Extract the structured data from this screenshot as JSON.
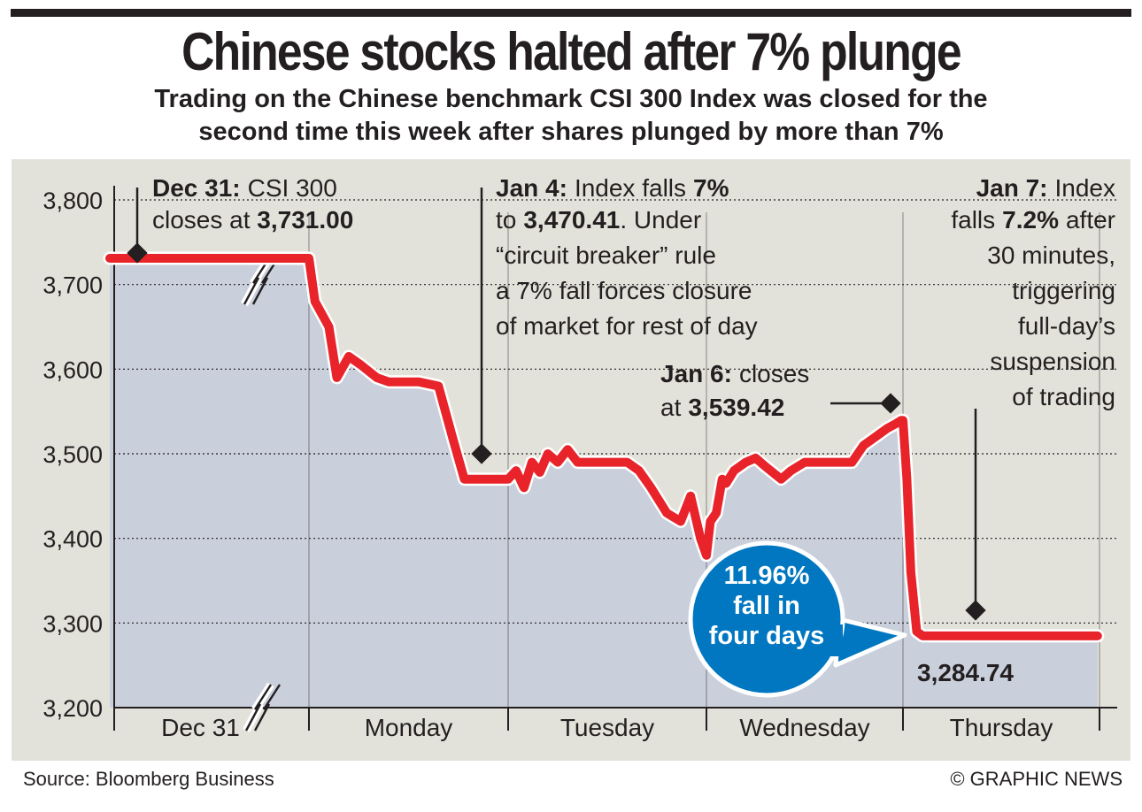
{
  "header": {
    "title": "Chinese stocks halted after 7% plunge",
    "subtitle_line1": "Trading on the Chinese benchmark CSI 300 Index was closed for the",
    "subtitle_line2": "second time this week after shares plunged by more than 7%"
  },
  "footer": {
    "source": "Source: Bloomberg Business",
    "credit": "© GRAPHIC NEWS"
  },
  "colors": {
    "line": "#e8232a",
    "bubble": "#0077c0",
    "panel": "#e3e2da",
    "area": "#c9cfdb"
  },
  "chart_data": {
    "type": "line",
    "title": "Chinese stocks halted after 7% plunge",
    "y_ticks": [
      "3,800",
      "3,700",
      "3,600",
      "3,500",
      "3,400",
      "3,300",
      "3,200"
    ],
    "ylim": [
      3200,
      3800
    ],
    "categories": [
      "Dec 31",
      "Monday",
      "Tuesday",
      "Wednesday",
      "Thursday"
    ],
    "grid": "dotted horizontal",
    "series": [
      {
        "x": [
          0,
          0.5,
          0.99,
          1.0,
          1.03,
          1.1,
          1.14,
          1.2,
          1.26,
          1.34,
          1.4,
          1.55,
          1.65,
          1.72,
          1.78,
          1.85,
          1.95,
          1.99,
          2.0,
          2.04,
          2.08,
          2.12,
          2.16,
          2.2,
          2.25,
          2.3,
          2.35,
          2.45,
          2.6,
          2.66,
          2.72,
          2.8,
          2.87,
          2.92,
          2.97,
          3.0,
          3.02,
          3.05,
          3.08,
          3.1,
          3.14,
          3.2,
          3.25,
          3.3,
          3.38,
          3.43,
          3.5,
          3.56,
          3.62,
          3.68,
          3.74,
          3.8,
          3.86,
          3.92,
          3.96,
          3.99,
          4.0,
          4.02,
          4.04,
          4.07,
          4.1,
          4.5,
          4.99
        ],
        "y": [
          3731,
          3731,
          3731,
          3731,
          3680,
          3650,
          3590,
          3615,
          3605,
          3590,
          3585,
          3585,
          3580,
          3520,
          3470,
          3470,
          3470,
          3470,
          3470,
          3480,
          3460,
          3490,
          3478,
          3500,
          3490,
          3505,
          3490,
          3490,
          3490,
          3480,
          3460,
          3430,
          3420,
          3450,
          3400,
          3380,
          3420,
          3430,
          3470,
          3465,
          3480,
          3490,
          3495,
          3485,
          3470,
          3480,
          3490,
          3490,
          3490,
          3490,
          3490,
          3510,
          3520,
          3530,
          3535,
          3539.42,
          3539.42,
          3470,
          3360,
          3290,
          3284.74,
          3284.74,
          3284.74
        ]
      }
    ],
    "annotations": [
      {
        "date": "Dec 31:",
        "text_lines": [
          "CSI 300",
          "closes at 3,731.00"
        ],
        "value_label": "3,731.00"
      },
      {
        "line1_a": "Jan 4:",
        "line1_b": "Index falls",
        "line1_c": "7%",
        "line2_a": "to",
        "line2_b": "3,470.41",
        "line2_c": ". Under",
        "line3": "“circuit breaker” rule",
        "line4": "a 7% fall forces closure",
        "line5": "of market for rest of day"
      },
      {
        "line1_a": "Jan 6:",
        "line1_b": "closes",
        "line2_a": "at",
        "line2_b": "3,539.42"
      },
      {
        "line1_a": "Jan 7:",
        "line1_b": "Index",
        "line2_a": "falls",
        "line2_b": "7.2%",
        "line2_c": "after",
        "line3": "30 minutes,",
        "line4": "triggering",
        "line5": "full-day’s",
        "line6": "suspension",
        "line7": "of trading"
      }
    ],
    "end_label": "3,284.74",
    "bubble": [
      "11.96%",
      "fall in",
      "four days"
    ]
  }
}
